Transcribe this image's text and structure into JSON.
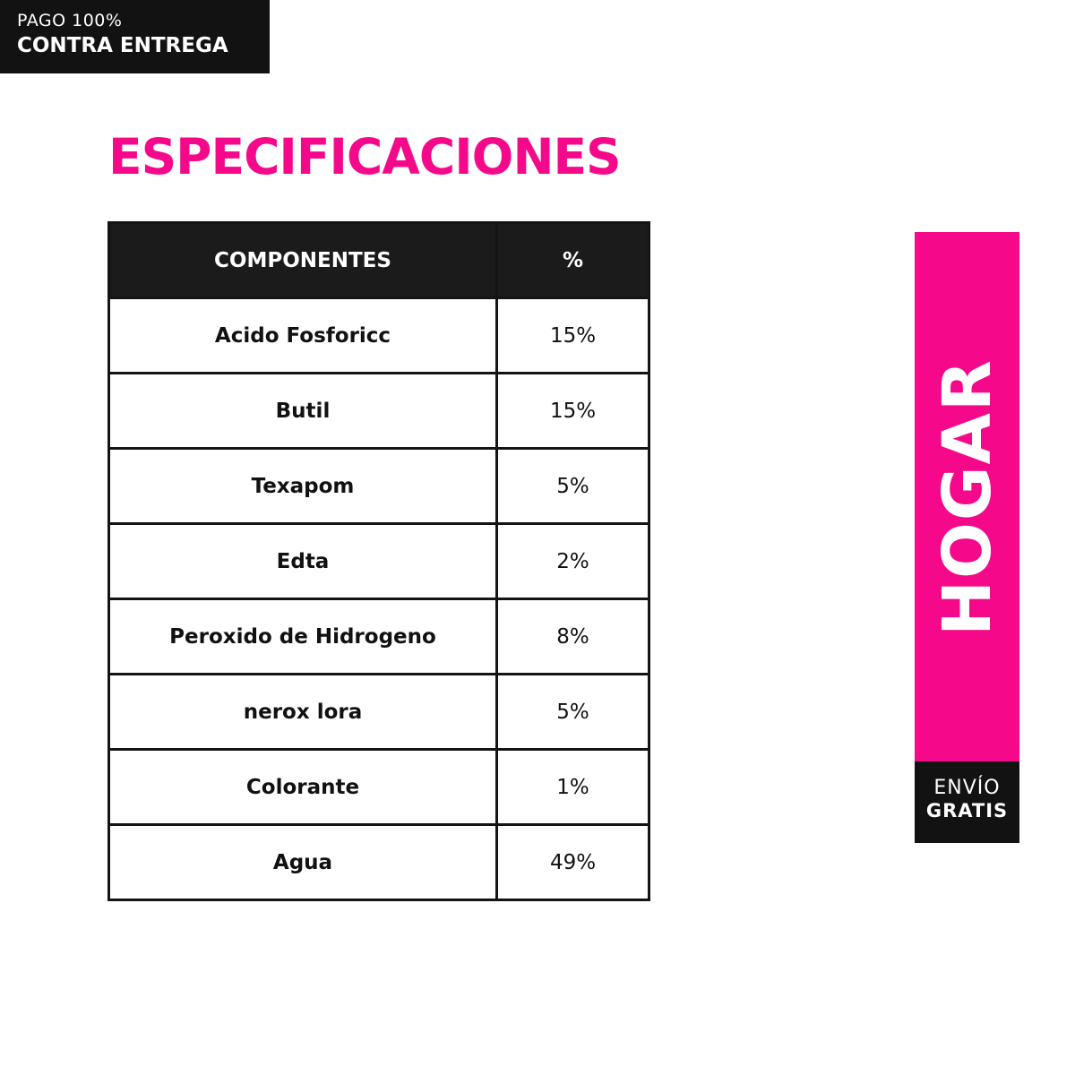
{
  "top_badge": {
    "line1": "PAGO 100%",
    "line2": "CONTRA ENTREGA"
  },
  "title": "ESPECIFICACIONES",
  "table": {
    "headers": [
      "COMPONENTES",
      "%"
    ],
    "rows": [
      {
        "component": "Acido Fosforicc",
        "percent": "15%"
      },
      {
        "component": "Butil",
        "percent": "15%"
      },
      {
        "component": "Texapom",
        "percent": "5%"
      },
      {
        "component": "Edta",
        "percent": "2%"
      },
      {
        "component": "Peroxido de Hidrogeno",
        "percent": "8%"
      },
      {
        "component": "nerox lora",
        "percent": "5%"
      },
      {
        "component": "Colorante",
        "percent": "1%"
      },
      {
        "component": "Agua",
        "percent": "49%"
      }
    ]
  },
  "side_band": {
    "label": "HOGAR"
  },
  "side_badge": {
    "line1": "ENVÍO",
    "line2": "GRATIS"
  },
  "colors": {
    "accent_pink": "#f5098a",
    "dark": "#121212",
    "background": "#ffffff"
  }
}
